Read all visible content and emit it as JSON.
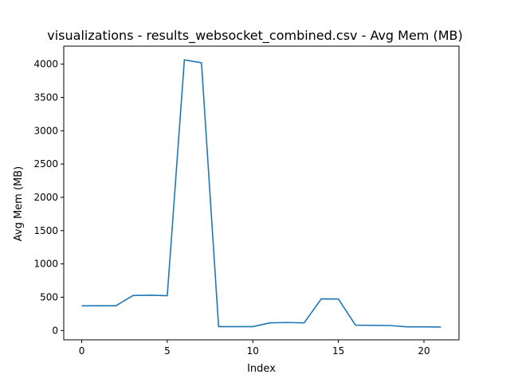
{
  "chart_data": {
    "type": "line",
    "title": "visualizations - results_websocket_combined.csv - Avg Mem (MB)",
    "xlabel": "Index",
    "ylabel": "Avg Mem (MB)",
    "xlim": [
      -1.05,
      22.05
    ],
    "ylim": [
      -140,
      4270
    ],
    "xticks": [
      0,
      5,
      10,
      15,
      20
    ],
    "yticks": [
      0,
      500,
      1000,
      1500,
      2000,
      2500,
      3000,
      3500,
      4000
    ],
    "grid": false,
    "series": [
      {
        "color": "#1f77b4",
        "x": [
          0,
          1,
          2,
          3,
          4,
          5,
          6,
          7,
          8,
          9,
          10,
          11,
          12,
          13,
          14,
          15,
          16,
          17,
          18,
          19,
          20,
          21
        ],
        "values": [
          370,
          372,
          372,
          525,
          530,
          522,
          4065,
          4020,
          58,
          58,
          58,
          115,
          120,
          115,
          475,
          473,
          80,
          77,
          75,
          55,
          55,
          52
        ]
      }
    ]
  }
}
